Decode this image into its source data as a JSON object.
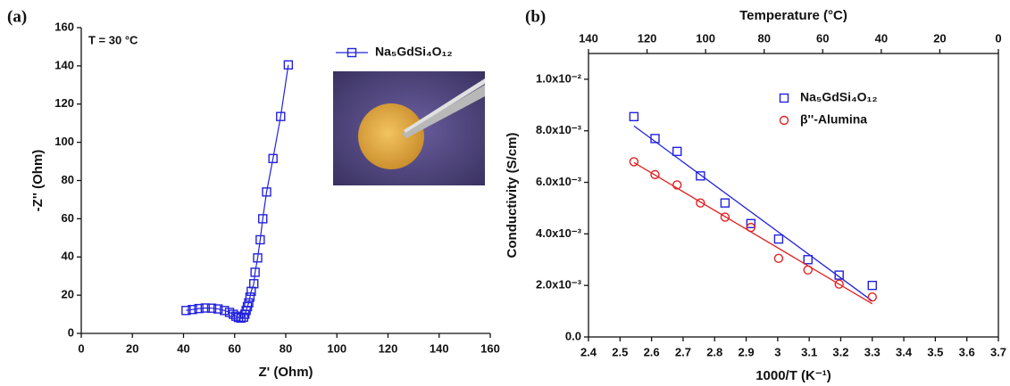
{
  "chart_data": [
    {
      "type": "line",
      "panel": "(a)",
      "annotation": "T = 30 °C",
      "xlabel": "Z' (Ohm)",
      "ylabel": "-Z'' (Ohm)",
      "xlim": [
        0,
        160
      ],
      "xticks": [
        0,
        20,
        40,
        60,
        80,
        100,
        120,
        140,
        160
      ],
      "ylim": [
        0,
        160
      ],
      "yticks": [
        0,
        20,
        40,
        60,
        80,
        100,
        120,
        140,
        160
      ],
      "x": [
        41,
        43.5,
        46,
        48.5,
        51,
        53.5,
        56,
        58,
        59.5,
        60.5,
        61.5,
        62.5,
        63.5,
        64,
        64.5,
        65,
        65.5,
        66,
        66.5,
        67.5,
        68,
        69,
        70,
        71,
        72.5,
        75,
        78,
        81
      ],
      "series": [
        {
          "name": "Na₅GdSi₄O₁₂",
          "color": "#2222dd",
          "marker": "square",
          "values": [
            12,
            12.5,
            13,
            13.3,
            13.2,
            12.8,
            12,
            11,
            10,
            9,
            8.3,
            8,
            8.5,
            10,
            12,
            14,
            16,
            19,
            22,
            26,
            32,
            39.5,
            49,
            60,
            74,
            91.5,
            113.5,
            140.5
          ]
        }
      ],
      "legend": "top-right"
    },
    {
      "type": "scatter",
      "panel": "(b)",
      "xlabel": "1000/T (K⁻¹)",
      "ylabel": "Conductivity (S/cm)",
      "x2label": "Temperature (°C)",
      "xlim": [
        2.4,
        3.7
      ],
      "xticks": [
        2.4,
        2.5,
        2.6,
        2.7,
        2.8,
        2.9,
        3.0,
        3.1,
        3.2,
        3.3,
        3.4,
        3.5,
        3.6,
        3.7
      ],
      "x2lim": [
        140,
        0
      ],
      "x2ticks": [
        140,
        120,
        100,
        80,
        60,
        40,
        20,
        0
      ],
      "ylim": [
        0,
        0.011
      ],
      "yticks": [
        {
          "value": 0,
          "label": "0.0"
        },
        {
          "value": 0.002,
          "label": "2.0x10⁻³"
        },
        {
          "value": 0.004,
          "label": "4.0x10⁻³"
        },
        {
          "value": 0.006,
          "label": "6.0x10⁻³"
        },
        {
          "value": 0.008,
          "label": "8.0x10⁻³"
        },
        {
          "value": 0.01,
          "label": "1.0x10⁻²"
        }
      ],
      "x": [
        2.544,
        2.611,
        2.681,
        2.755,
        2.833,
        2.915,
        3.003,
        3.096,
        3.195,
        3.3
      ],
      "series": [
        {
          "name": "Na₅GdSi₄O₁₂",
          "color": "#2222dd",
          "marker": "square",
          "fit": true,
          "values": [
            0.00855,
            0.0077,
            0.0072,
            0.00625,
            0.0052,
            0.0044,
            0.0038,
            0.003,
            0.0024,
            0.002
          ]
        },
        {
          "name": "β''-Alumina",
          "color": "#e02222",
          "marker": "circle",
          "fit": true,
          "values": [
            0.0068,
            0.0063,
            0.0059,
            0.0052,
            0.00465,
            0.00425,
            0.00305,
            0.0026,
            0.00205,
            0.00155
          ]
        }
      ],
      "legend": "top-right"
    }
  ]
}
